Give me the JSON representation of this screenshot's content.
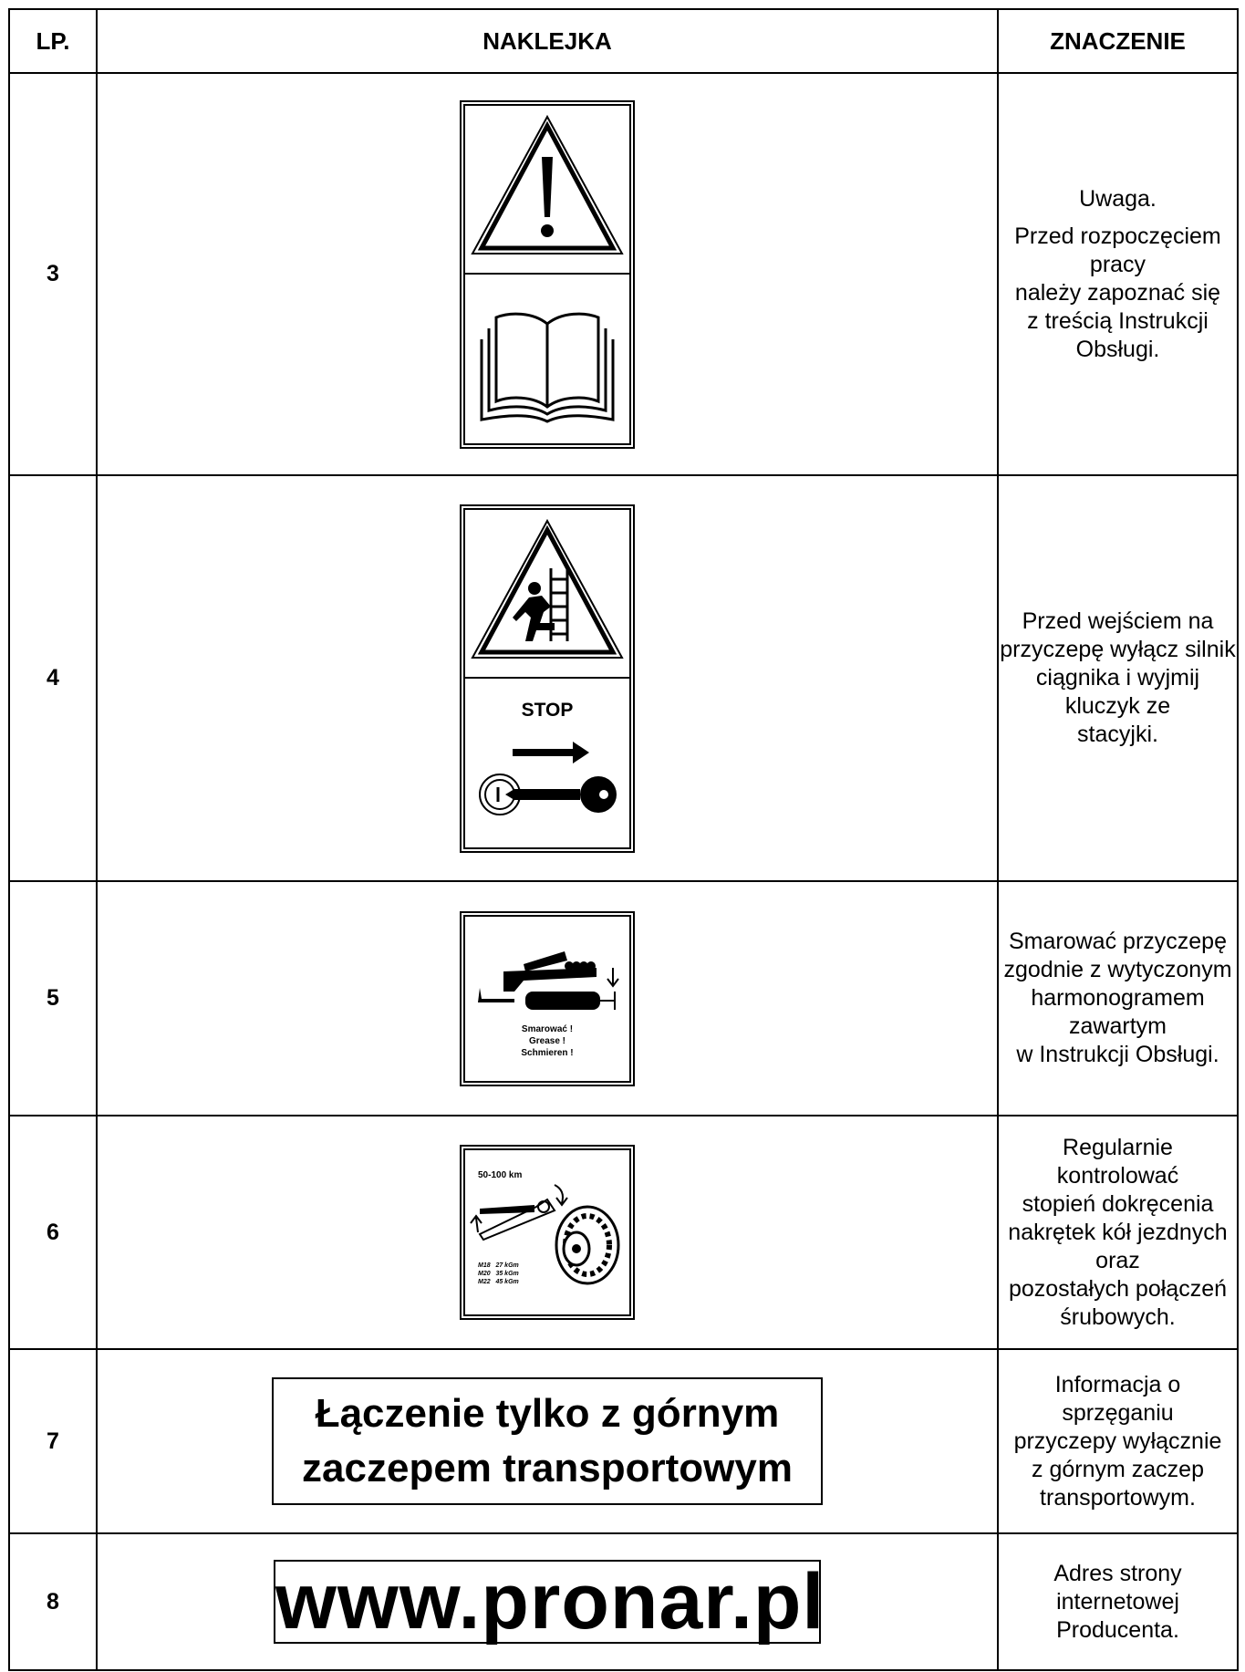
{
  "table": {
    "headers": [
      "LP.",
      "NAKLEJKA",
      "ZNACZENIE"
    ],
    "rows": [
      {
        "lp": "3",
        "sticker": [],
        "meaning": [
          [
            "Uwaga."
          ],
          [
            "Przed rozpoczęciem pracy",
            "należy zapoznać się",
            "z treścią Instrukcji Obsługi."
          ]
        ]
      },
      {
        "lp": "4",
        "sticker": [
          "STOP"
        ],
        "meaning": [
          [
            "Przed wejściem na",
            "przyczepę wyłącz silnik",
            "ciągnika i wyjmij kluczyk ze",
            "stacyjki."
          ]
        ]
      },
      {
        "lp": "5",
        "sticker": [
          "Smarować !",
          "Grease !",
          "Schmieren !"
        ],
        "meaning": [
          [
            "Smarować przyczepę",
            "zgodnie z wytyczonym",
            "harmonogramem zawartym",
            "w Instrukcji Obsługi."
          ]
        ]
      },
      {
        "lp": "6",
        "sticker": [
          "50-100 km",
          "M18   27 kGm",
          "M20   35 kGm",
          "M22   45 kGm"
        ],
        "meaning": [
          [
            "Regularnie kontrolować",
            "stopień dokręcenia",
            "nakrętek kół jezdnych oraz",
            "pozostałych połączeń",
            "śrubowych."
          ]
        ]
      },
      {
        "lp": "7",
        "sticker": [
          "Łączenie tylko z górnym",
          "zaczepem transportowym"
        ],
        "meaning": [
          [
            "Informacja o sprzęganiu",
            "przyczepy wyłącznie",
            "z górnym zaczep",
            "transportowym."
          ]
        ]
      },
      {
        "lp": "8",
        "sticker": [
          "www.pronar.pl"
        ],
        "meaning": [
          [
            "Adres strony internetowej",
            "Producenta."
          ]
        ]
      }
    ]
  }
}
